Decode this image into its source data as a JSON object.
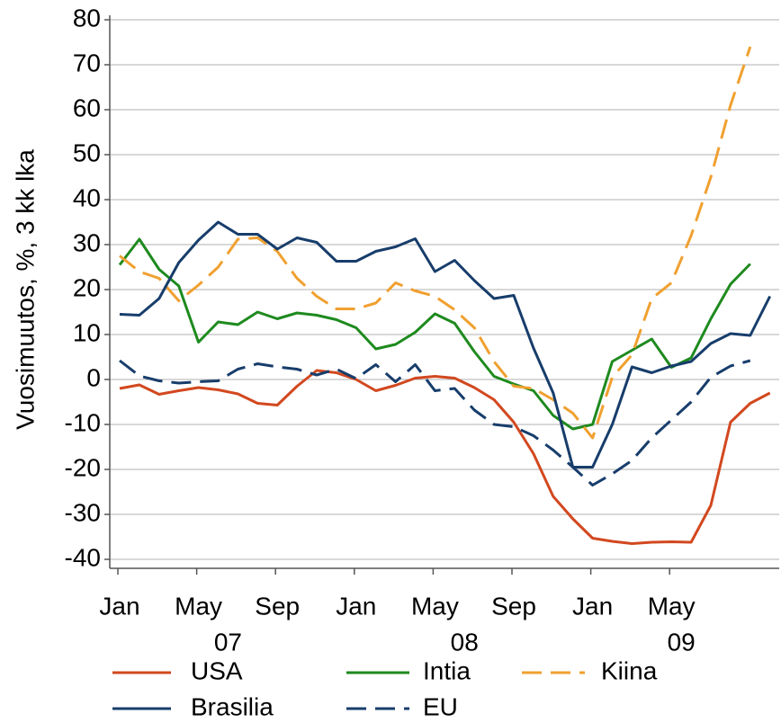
{
  "chart_data": {
    "type": "line",
    "y_label": "Vuosimuutos, %, 3 kk lka",
    "categories": [
      "Jan",
      null,
      null,
      null,
      "May",
      null,
      null,
      null,
      "Sep",
      null,
      null,
      null,
      "Jan",
      null,
      null,
      null,
      "May",
      null,
      null,
      null,
      "Sep",
      null,
      null,
      null,
      "Jan",
      null,
      null,
      null,
      "May",
      null,
      null,
      null,
      null,
      null
    ],
    "x_groups": [
      "07",
      "08",
      "09"
    ],
    "ylim": [
      -42,
      81
    ],
    "yticks": [
      -40,
      -30,
      -20,
      -10,
      0,
      10,
      20,
      30,
      40,
      50,
      60,
      70,
      80
    ],
    "grid": true,
    "series": [
      {
        "name": "USA",
        "color": "#d2481f",
        "dashed": false,
        "values": [
          -2,
          -1.2,
          -3.3,
          -2.5,
          -1.8,
          -2.3,
          -3.2,
          -5.3,
          -5.7,
          -1.5,
          2,
          1.5,
          0,
          -2.5,
          -1.3,
          0.3,
          0.7,
          0.3,
          -1.8,
          -4.5,
          -9.5,
          -16.5,
          -26,
          -31,
          -35.3,
          -36,
          -36.5,
          -36.2,
          -36.1,
          -36.2,
          -28,
          -9.5,
          -5.3,
          -3
        ]
      },
      {
        "name": "Intia",
        "color": "#1e8a1e",
        "dashed": false,
        "values": [
          25.5,
          31.2,
          24.5,
          20.8,
          8.3,
          12.8,
          12.2,
          15,
          13.5,
          14.8,
          14.3,
          13.3,
          11.5,
          6.8,
          7.8,
          10.5,
          14.6,
          12.5,
          6.2,
          0.7,
          -1,
          -2.5,
          -8,
          -11,
          -10,
          4,
          6.5,
          9,
          2.7,
          4.8,
          13.5,
          21.2,
          25.7,
          null
        ]
      },
      {
        "name": "Kiina",
        "color": "#f0a030",
        "dashed": true,
        "values": [
          27.5,
          24,
          22.5,
          17.5,
          21,
          25,
          31.2,
          31.5,
          28.5,
          22.5,
          18.5,
          15.7,
          15.7,
          17,
          21.5,
          19.7,
          18.5,
          15.5,
          11.5,
          4,
          -1.5,
          -2,
          -4.5,
          -7.5,
          -13,
          0.5,
          5.5,
          18,
          21.5,
          32,
          45,
          61,
          74,
          null
        ]
      },
      {
        "name": "Brasilia",
        "color": "#173d6b",
        "dashed": false,
        "values": [
          14.5,
          14.3,
          18,
          26,
          31,
          35,
          32.3,
          32.3,
          29,
          31.5,
          30.5,
          26.3,
          26.3,
          28.5,
          29.5,
          31.3,
          24,
          26.5,
          22,
          18,
          18.7,
          7,
          -3,
          -19.5,
          -19.5,
          -10,
          2.8,
          1.5,
          3,
          4,
          8,
          10.2,
          9.8,
          18.5
        ]
      },
      {
        "name": "EU",
        "color": "#173d6b",
        "dashed": true,
        "values": [
          4.2,
          0.8,
          -0.3,
          -0.8,
          -0.5,
          -0.3,
          2.3,
          3.5,
          2.8,
          2.3,
          1,
          2.3,
          0.2,
          3.3,
          -0.5,
          3.3,
          -2.5,
          -2,
          -6.8,
          -10,
          -10.5,
          -12.5,
          -15.7,
          -19.5,
          -23.5,
          -21,
          -18,
          -13,
          -9,
          -5,
          0.5,
          3,
          4.2,
          null
        ]
      }
    ]
  }
}
